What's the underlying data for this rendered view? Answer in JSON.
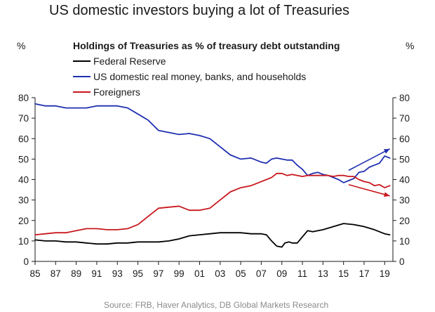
{
  "page_title": "US domestic investors buying a lot of Treasuries",
  "chart_data": {
    "type": "line",
    "title": "Holdings of Treasuries as % of treasury debt outstanding",
    "y_unit_left": "%",
    "y_unit_right": "%",
    "xlim": [
      1985,
      2019.8
    ],
    "ylim": [
      0,
      80
    ],
    "y_ticks": [
      0,
      10,
      20,
      30,
      40,
      50,
      60,
      70,
      80
    ],
    "x_tick_values": [
      1985,
      1987,
      1989,
      1991,
      1993,
      1995,
      1997,
      1999,
      2001,
      2003,
      2005,
      2007,
      2009,
      2011,
      2013,
      2015,
      2017,
      2019
    ],
    "x_tick_labels": [
      "85",
      "87",
      "89",
      "91",
      "93",
      "95",
      "97",
      "99",
      "01",
      "03",
      "05",
      "07",
      "09",
      "11",
      "13",
      "15",
      "17",
      "19"
    ],
    "grid": false,
    "legend_position": "top-left",
    "series": [
      {
        "name": "Federal Reserve",
        "color": "#000000",
        "x": [
          1985,
          1986,
          1987,
          1988,
          1989,
          1990,
          1991,
          1992,
          1993,
          1994,
          1995,
          1996,
          1997,
          1998,
          1999,
          2000,
          2001,
          2002,
          2003,
          2004,
          2005,
          2006,
          2007,
          2007.5,
          2008,
          2008.5,
          2009,
          2009.3,
          2009.7,
          2010,
          2010.5,
          2011,
          2011.5,
          2012,
          2013,
          2014,
          2015,
          2016,
          2017,
          2018,
          2019,
          2019.5
        ],
        "y": [
          10.5,
          10,
          10,
          9.5,
          9.5,
          9,
          8.5,
          8.5,
          9,
          9,
          9.5,
          9.5,
          9.5,
          10,
          11,
          12.5,
          13,
          13.5,
          14,
          14,
          14,
          13.5,
          13.5,
          13,
          10,
          7.5,
          7,
          9,
          9.5,
          9,
          9,
          12,
          15,
          14.5,
          15.5,
          17,
          18.5,
          18,
          17,
          15.5,
          13.5,
          13
        ]
      },
      {
        "name": "US domestic real money, banks, and households",
        "color": "#1f2fb0",
        "x": [
          1985,
          1986,
          1987,
          1988,
          1989,
          1990,
          1991,
          1992,
          1993,
          1994,
          1995,
          1996,
          1997,
          1998,
          1999,
          2000,
          2001,
          2002,
          2003,
          2004,
          2005,
          2006,
          2007,
          2007.5,
          2008,
          2008.5,
          2009,
          2009.5,
          2010,
          2010.5,
          2011,
          2011.5,
          2012,
          2012.5,
          2013,
          2013.5,
          2014,
          2014.5,
          2015,
          2015.5,
          2016,
          2016.5,
          2017,
          2017.5,
          2018,
          2018.5,
          2019,
          2019.5
        ],
        "y": [
          77,
          76,
          76,
          75,
          75,
          75,
          76,
          76,
          76,
          75,
          72,
          69,
          64,
          63,
          62,
          62.5,
          61.5,
          60,
          56,
          52,
          50,
          50.5,
          48.5,
          48,
          50,
          50.5,
          50,
          49.5,
          49.5,
          47,
          45,
          42,
          43,
          43.5,
          42.5,
          42,
          41,
          40,
          38.5,
          39.5,
          40.5,
          43.5,
          44,
          46,
          47,
          48,
          51.5,
          50.5
        ]
      },
      {
        "name": "Foreigners",
        "color": "#c8181e",
        "x": [
          1985,
          1986,
          1987,
          1988,
          1989,
          1990,
          1991,
          1992,
          1993,
          1994,
          1995,
          1996,
          1997,
          1998,
          1999,
          2000,
          2001,
          2002,
          2003,
          2004,
          2005,
          2006,
          2007,
          2008,
          2008.5,
          2009,
          2009.5,
          2010,
          2010.5,
          2011,
          2011.5,
          2012,
          2012.5,
          2013,
          2013.5,
          2014,
          2014.5,
          2015,
          2015.5,
          2016,
          2016.5,
          2017,
          2017.5,
          2018,
          2018.5,
          2019,
          2019.5
        ],
        "y": [
          13,
          13.5,
          14,
          14,
          15,
          16,
          16,
          15.5,
          15.5,
          16,
          18,
          22,
          26,
          26.5,
          27,
          25,
          25,
          26,
          30,
          34,
          36,
          37,
          39,
          41,
          43,
          43,
          42,
          42.5,
          42,
          41.5,
          42,
          42,
          42,
          42,
          42,
          41.5,
          42,
          42,
          41.5,
          41.5,
          40,
          39,
          38.5,
          37,
          37.5,
          36,
          37
        ]
      }
    ],
    "annotations": [
      {
        "type": "arrow",
        "color": "#1f2fb0",
        "x1": 2015.5,
        "y1": 44.5,
        "x2": 2019.5,
        "y2": 55
      },
      {
        "type": "arrow",
        "color": "#c8181e",
        "x1": 2015.5,
        "y1": 37.5,
        "x2": 2019.5,
        "y2": 32
      }
    ],
    "source": "Source: FRB, Haver Analytics,  DB Global Markets Research"
  }
}
